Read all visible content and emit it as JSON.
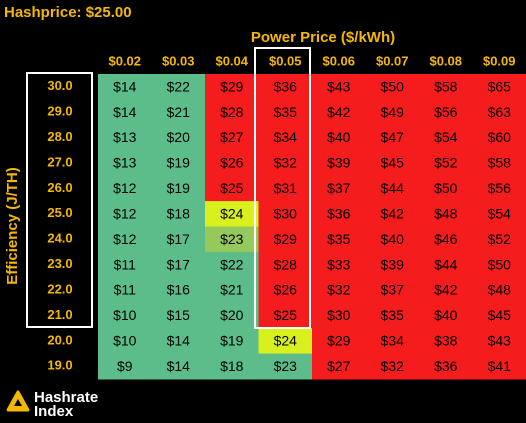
{
  "header": {
    "title": "Hashprice: $25.00"
  },
  "table": {
    "column_title": "Power Price ($/kWh)",
    "row_title": "Efficiency (J/TH)",
    "columns": [
      "$0.02",
      "$0.03",
      "$0.04",
      "$0.05",
      "$0.06",
      "$0.07",
      "$0.08",
      "$0.09"
    ],
    "rows": [
      {
        "label": "30.0",
        "cells": [
          "$14",
          "$22",
          "$29",
          "$36",
          "$43",
          "$50",
          "$58",
          "$65"
        ],
        "fills": [
          "#5cbd8b",
          "#5cbd8b",
          "#f41c1c",
          "#f41c1c",
          "#f41c1c",
          "#f41c1c",
          "#f41c1c",
          "#f41c1c"
        ]
      },
      {
        "label": "29.0",
        "cells": [
          "$14",
          "$21",
          "$28",
          "$35",
          "$42",
          "$49",
          "$56",
          "$63"
        ],
        "fills": [
          "#5cbd8b",
          "#5cbd8b",
          "#f41c1c",
          "#f41c1c",
          "#f41c1c",
          "#f41c1c",
          "#f41c1c",
          "#f41c1c"
        ]
      },
      {
        "label": "28.0",
        "cells": [
          "$13",
          "$20",
          "$27",
          "$34",
          "$40",
          "$47",
          "$54",
          "$60"
        ],
        "fills": [
          "#5cbd8b",
          "#5cbd8b",
          "#f41c1c",
          "#f41c1c",
          "#f41c1c",
          "#f41c1c",
          "#f41c1c",
          "#f41c1c"
        ]
      },
      {
        "label": "27.0",
        "cells": [
          "$13",
          "$19",
          "$26",
          "$32",
          "$39",
          "$45",
          "$52",
          "$58"
        ],
        "fills": [
          "#5cbd8b",
          "#5cbd8b",
          "#f41c1c",
          "#f41c1c",
          "#f41c1c",
          "#f41c1c",
          "#f41c1c",
          "#f41c1c"
        ]
      },
      {
        "label": "26.0",
        "cells": [
          "$12",
          "$19",
          "$25",
          "$31",
          "$37",
          "$44",
          "$50",
          "$56"
        ],
        "fills": [
          "#5cbd8b",
          "#5cbd8b",
          "#f41c1c",
          "#f41c1c",
          "#f41c1c",
          "#f41c1c",
          "#f41c1c",
          "#f41c1c"
        ]
      },
      {
        "label": "25.0",
        "cells": [
          "$12",
          "$18",
          "$24",
          "$30",
          "$36",
          "$42",
          "$48",
          "$54"
        ],
        "fills": [
          "#5cbd8b",
          "#5cbd8b",
          "#d8f01e",
          "#f41c1c",
          "#f41c1c",
          "#f41c1c",
          "#f41c1c",
          "#f41c1c"
        ]
      },
      {
        "label": "24.0",
        "cells": [
          "$12",
          "$17",
          "$23",
          "$29",
          "$35",
          "$40",
          "$46",
          "$52"
        ],
        "fills": [
          "#5cbd8b",
          "#5cbd8b",
          "#96c95c",
          "#f41c1c",
          "#f41c1c",
          "#f41c1c",
          "#f41c1c",
          "#f41c1c"
        ]
      },
      {
        "label": "23.0",
        "cells": [
          "$11",
          "$17",
          "$22",
          "$28",
          "$33",
          "$39",
          "$44",
          "$50"
        ],
        "fills": [
          "#5cbd8b",
          "#5cbd8b",
          "#5cbd8b",
          "#f41c1c",
          "#f41c1c",
          "#f41c1c",
          "#f41c1c",
          "#f41c1c"
        ]
      },
      {
        "label": "22.0",
        "cells": [
          "$11",
          "$16",
          "$21",
          "$26",
          "$32",
          "$37",
          "$42",
          "$48"
        ],
        "fills": [
          "#5cbd8b",
          "#5cbd8b",
          "#5cbd8b",
          "#f41c1c",
          "#f41c1c",
          "#f41c1c",
          "#f41c1c",
          "#f41c1c"
        ]
      },
      {
        "label": "21.0",
        "cells": [
          "$10",
          "$15",
          "$20",
          "$25",
          "$30",
          "$35",
          "$40",
          "$45"
        ],
        "fills": [
          "#5cbd8b",
          "#5cbd8b",
          "#5cbd8b",
          "#f41c1c",
          "#f41c1c",
          "#f41c1c",
          "#f41c1c",
          "#f41c1c"
        ]
      },
      {
        "label": "20.0",
        "cells": [
          "$10",
          "$14",
          "$19",
          "$24",
          "$29",
          "$34",
          "$38",
          "$43"
        ],
        "fills": [
          "#5cbd8b",
          "#5cbd8b",
          "#5cbd8b",
          "#d8f01e",
          "#f41c1c",
          "#f41c1c",
          "#f41c1c",
          "#f41c1c"
        ]
      },
      {
        "label": "19.0",
        "cells": [
          "$9",
          "$14",
          "$18",
          "$23",
          "$27",
          "$32",
          "$36",
          "$41"
        ],
        "fills": [
          "#5cbd8b",
          "#5cbd8b",
          "#5cbd8b",
          "#5cbd8b",
          "#f41c1c",
          "#f41c1c",
          "#f41c1c",
          "#f41c1c"
        ]
      }
    ]
  },
  "footer": {
    "logo_line1": "Hashrate",
    "logo_line2": "Index"
  }
}
